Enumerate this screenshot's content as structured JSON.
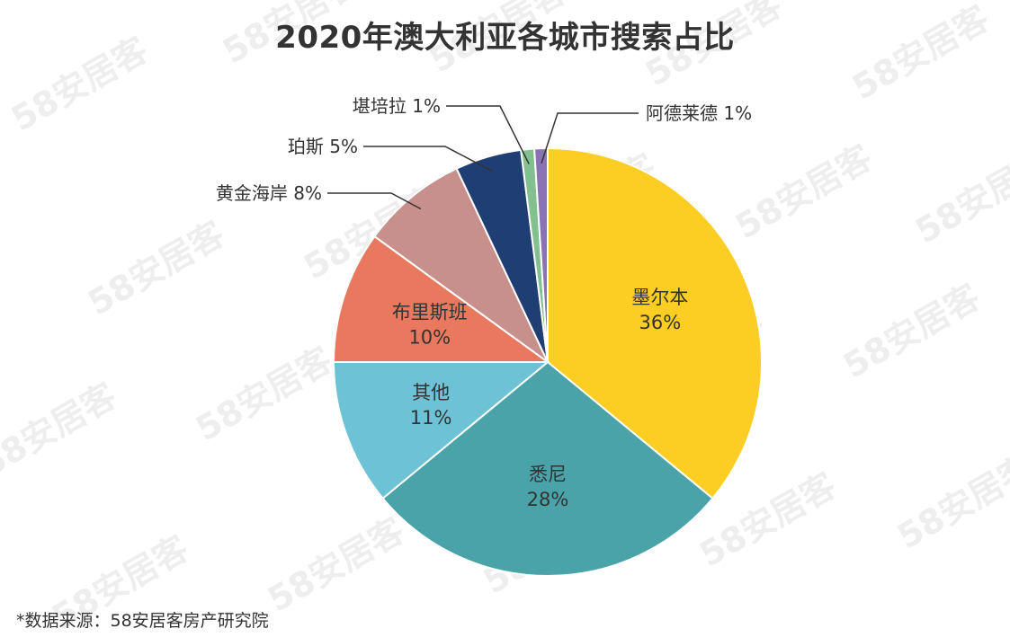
{
  "watermark": {
    "text": "58安居客",
    "color": "#eeeeee"
  },
  "chart_data": {
    "type": "pie",
    "title": "2020年澳大利亚各城市搜索占比",
    "start_angle_deg": 0,
    "direction": "clockwise",
    "slices": [
      {
        "label": "墨尔本",
        "value": 36,
        "value_label": "36%",
        "color": "#fccd22",
        "label_position": "inside"
      },
      {
        "label": "悉尼",
        "value": 28,
        "value_label": "28%",
        "color": "#4ba3aa",
        "label_position": "inside"
      },
      {
        "label": "其他",
        "value": 11,
        "value_label": "11%",
        "color": "#6ec2d6",
        "label_position": "inside"
      },
      {
        "label": "布里斯班",
        "value": 10,
        "value_label": "10%",
        "color": "#e8795f",
        "label_position": "inside"
      },
      {
        "label": "黄金海岸",
        "value": 8,
        "value_label": "8%",
        "color": "#c8908d",
        "label_position": "outside"
      },
      {
        "label": "珀斯",
        "value": 5,
        "value_label": "5%",
        "color": "#1f3f74",
        "label_position": "outside"
      },
      {
        "label": "堪培拉",
        "value": 1,
        "value_label": "1%",
        "color": "#82c08f",
        "label_position": "outside"
      },
      {
        "label": "阿德莱德",
        "value": 1,
        "value_label": "1%",
        "color": "#8a73b4",
        "label_position": "outside"
      }
    ]
  },
  "source_note": "*数据来源：58安居客房产研究院"
}
